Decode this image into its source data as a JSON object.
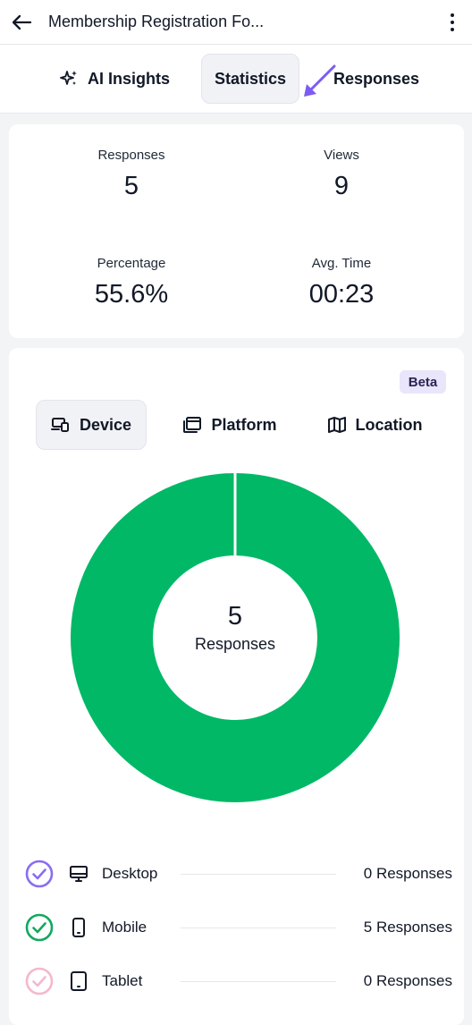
{
  "header": {
    "title": "Membership Registration Fo...",
    "back_icon": "arrow-left-icon",
    "menu_icon": "kebab-menu-icon"
  },
  "tabs": [
    {
      "label": "AI Insights",
      "icon": "sparkles-icon"
    },
    {
      "label": "Statistics",
      "selected": true
    },
    {
      "label": "Responses"
    }
  ],
  "stats": {
    "responses": {
      "label": "Responses",
      "value": "5"
    },
    "views": {
      "label": "Views",
      "value": "9"
    },
    "percentage": {
      "label": "Percentage",
      "value": "55.6%"
    },
    "avg_time": {
      "label": "Avg. Time",
      "value": "00:23"
    }
  },
  "breakdown": {
    "badge": "Beta",
    "tabs": [
      {
        "label": "Device",
        "icon": "devices-icon",
        "selected": true
      },
      {
        "label": "Platform",
        "icon": "windows-icon"
      },
      {
        "label": "Location",
        "icon": "map-icon"
      }
    ],
    "center_value": "5",
    "center_label": "Responses",
    "legend": [
      {
        "name": "Desktop",
        "value": "0 Responses",
        "check_color": "#8b6cf0",
        "icon": "desktop-icon"
      },
      {
        "name": "Mobile",
        "value": "5 Responses",
        "check_color": "#12a85e",
        "icon": "mobile-icon"
      },
      {
        "name": "Tablet",
        "value": "0 Responses",
        "check_color": "#f3b8cf",
        "icon": "tablet-icon"
      }
    ]
  },
  "colors": {
    "accent": "#8b6cf0",
    "donut": "#00b866",
    "badge_bg": "#e9e5fb"
  },
  "chart_data": {
    "type": "pie",
    "categories": [
      "Desktop",
      "Mobile",
      "Tablet"
    ],
    "values": [
      0,
      5,
      0
    ],
    "title": "",
    "center_text": "5 Responses"
  }
}
